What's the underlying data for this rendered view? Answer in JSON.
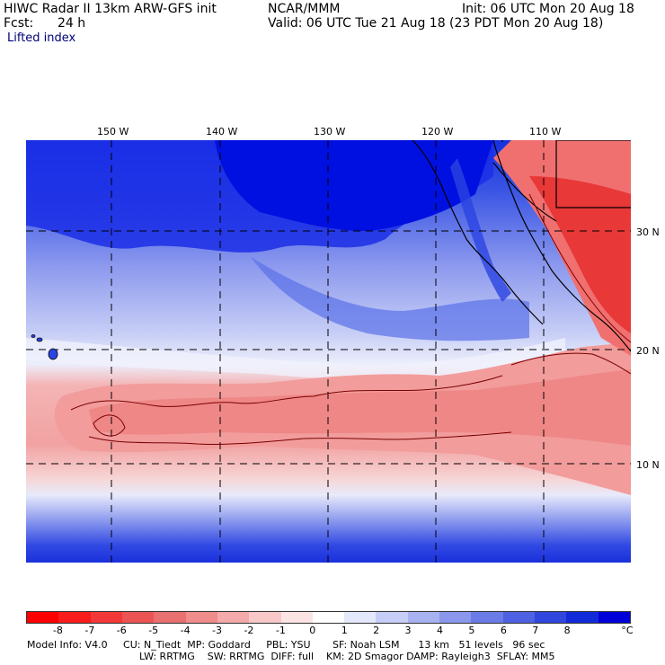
{
  "header": {
    "title": "HIWC Radar II 13km ARW-GFS init",
    "org": "NCAR/MMM",
    "init": "Init: 06 UTC Mon 20 Aug 18",
    "fcst_label": "Fcst:",
    "fcst_value": "24 h",
    "valid": "Valid: 06 UTC Tue 21 Aug 18 (23 PDT Mon 20 Aug 18)",
    "field": "Lifted index"
  },
  "map": {
    "lon_labels": [
      "150 W",
      "140 W",
      "130 W",
      "120 W",
      "110 W"
    ],
    "lat_labels": [
      "30 N",
      "20 N",
      "10 N"
    ],
    "colors": {
      "strong_blue": "#0000e6",
      "mid_blue": "#4a64e6",
      "light_blue": "#aab4f0",
      "pale": "#e6e8fa",
      "light_red": "#f5a0a0",
      "mid_red": "#f06464",
      "strong_red": "#e62828",
      "coast": "#000000",
      "contour": "#8b0000"
    }
  },
  "colorbar": {
    "ticks": [
      "-8",
      "-7",
      "-6",
      "-5",
      "-4",
      "-3",
      "-2",
      "-1",
      "0",
      "1",
      "2",
      "3",
      "4",
      "5",
      "6",
      "7",
      "8"
    ],
    "unit": "°C",
    "colors": [
      "#ff0000",
      "#f81c1c",
      "#f23838",
      "#ec5454",
      "#e87070",
      "#f08c8c",
      "#f4aaaa",
      "#f8c8c8",
      "#fce4e4",
      "#ffffff",
      "#e4e8fb",
      "#c6cdf6",
      "#a8b2f1",
      "#8a97ec",
      "#6c7ce7",
      "#4e61e2",
      "#3046dd",
      "#122bd8",
      "#0000d8"
    ]
  },
  "footer": {
    "line1": "Model Info: V4.0     CU: N_Tiedt  MP: Goddard     PBL: YSU       SF: Noah LSM      13 km   51 levels   96 sec",
    "line2": "LW: RRTMG    SW: RRTMG  DIFF: full    KM: 2D Smagor DAMP: Rayleigh3  SFLAY: MM5"
  }
}
